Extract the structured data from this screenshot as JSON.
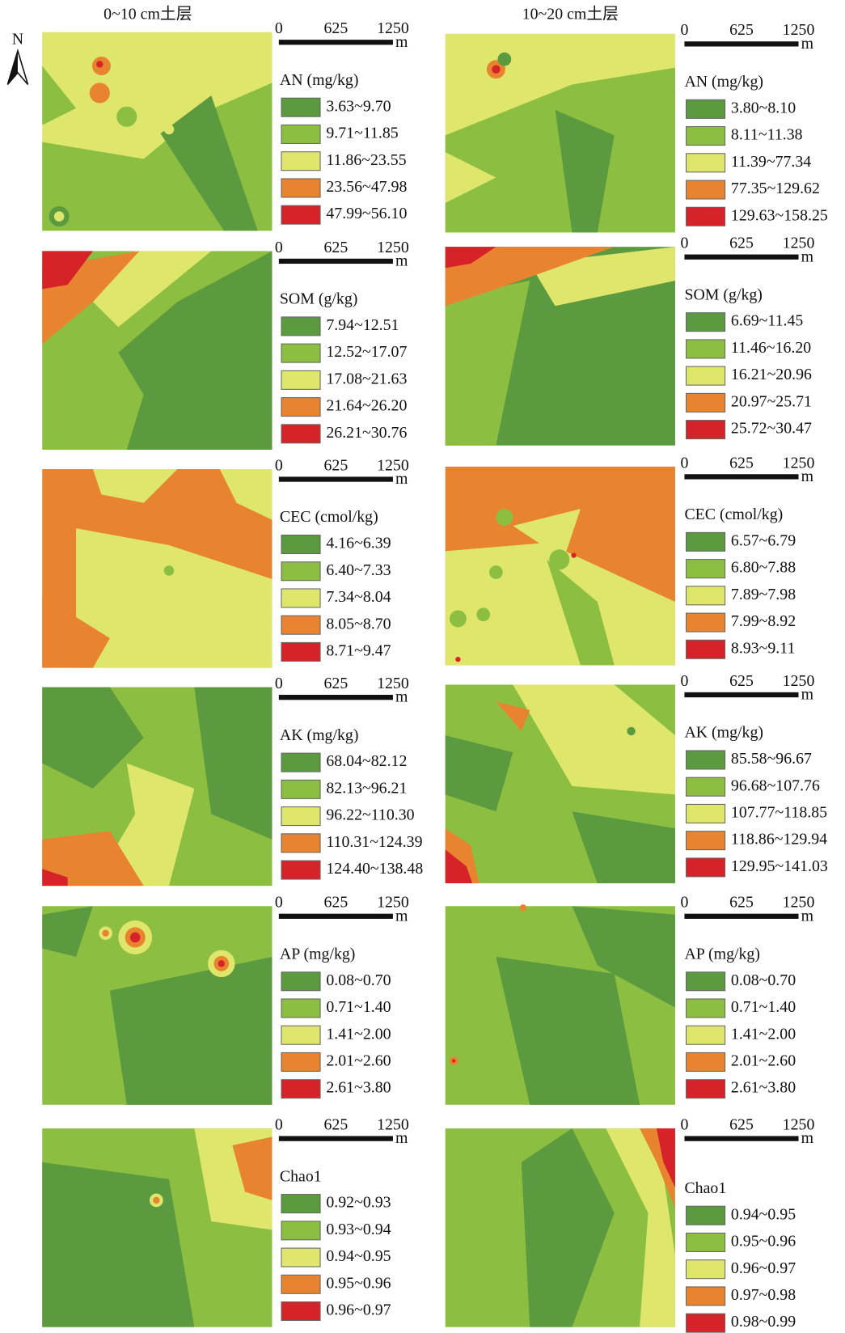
{
  "north": "N",
  "legend_colors": [
    "#5b9a3f",
    "#8cbf41",
    "#dfe66c",
    "#e8832f",
    "#d62229"
  ],
  "columns": [
    {
      "title": "0~10 cm土层",
      "panels": [
        {
          "scale_labels": [
            "0",
            "625",
            "1250"
          ],
          "unit": "m",
          "legend": {
            "title": "AN (mg/kg)",
            "items": [
              "3.63~9.70",
              "9.71~11.85",
              "11.86~23.55",
              "23.56~47.98",
              "47.99~56.10"
            ]
          }
        },
        {
          "scale_labels": [
            "0",
            "625",
            "1250"
          ],
          "unit": "m",
          "legend": {
            "title": "SOM (g/kg)",
            "items": [
              "7.94~12.51",
              "12.52~17.07",
              "17.08~21.63",
              "21.64~26.20",
              "26.21~30.76"
            ]
          }
        },
        {
          "scale_labels": [
            "0",
            "625",
            "1250"
          ],
          "unit": "m",
          "legend": {
            "title": "CEC (cmol/kg)",
            "items": [
              "4.16~6.39",
              "6.40~7.33",
              "7.34~8.04",
              "8.05~8.70",
              "8.71~9.47"
            ]
          }
        },
        {
          "scale_labels": [
            "0",
            "625",
            "1250"
          ],
          "unit": "m",
          "legend": {
            "title": "AK (mg/kg)",
            "items": [
              "68.04~82.12",
              "82.13~96.21",
              "96.22~110.30",
              "110.31~124.39",
              "124.40~138.48"
            ]
          }
        },
        {
          "scale_labels": [
            "0",
            "625",
            "1250"
          ],
          "unit": "m",
          "legend": {
            "title": "AP (mg/kg)",
            "items": [
              "0.08~0.70",
              "0.71~1.40",
              "1.41~2.00",
              "2.01~2.60",
              "2.61~3.80"
            ]
          }
        },
        {
          "scale_labels": [
            "0",
            "625",
            "1250"
          ],
          "unit": "m",
          "legend": {
            "title": "Chao1",
            "items": [
              "0.92~0.93",
              "0.93~0.94",
              "0.94~0.95",
              "0.95~0.96",
              "0.96~0.97"
            ]
          }
        }
      ]
    },
    {
      "title": "10~20 cm土层",
      "panels": [
        {
          "scale_labels": [
            "0",
            "625",
            "1250"
          ],
          "unit": "m",
          "legend": {
            "title": "AN (mg/kg)",
            "items": [
              "3.80~8.10",
              "8.11~11.38",
              "11.39~77.34",
              "77.35~129.62",
              "129.63~158.25"
            ]
          }
        },
        {
          "scale_labels": [
            "0",
            "625",
            "1250"
          ],
          "unit": "m",
          "legend": {
            "title": "SOM (g/kg)",
            "items": [
              "6.69~11.45",
              "11.46~16.20",
              "16.21~20.96",
              "20.97~25.71",
              "25.72~30.47"
            ]
          }
        },
        {
          "scale_labels": [
            "0",
            "625",
            "1250"
          ],
          "unit": "m",
          "legend": {
            "title": "CEC (cmol/kg)",
            "items": [
              "6.57~6.79",
              "6.80~7.88",
              "7.89~7.98",
              "7.99~8.92",
              "8.93~9.11"
            ]
          }
        },
        {
          "scale_labels": [
            "0",
            "625",
            "1250"
          ],
          "unit": "m",
          "legend": {
            "title": "AK (mg/kg)",
            "items": [
              "85.58~96.67",
              "96.68~107.76",
              "107.77~118.85",
              "118.86~129.94",
              "129.95~141.03"
            ]
          }
        },
        {
          "scale_labels": [
            "0",
            "625",
            "1250"
          ],
          "unit": "m",
          "legend": {
            "title": "AP (mg/kg)",
            "items": [
              "0.08~0.70",
              "0.71~1.40",
              "1.41~2.00",
              "2.01~2.60",
              "2.61~3.80"
            ]
          }
        },
        {
          "scale_labels": [
            "0",
            "625",
            "1250"
          ],
          "unit": "m",
          "legend": {
            "title": "Chao1",
            "items": [
              "0.94~0.95",
              "0.95~0.96",
              "0.96~0.97",
              "0.97~0.98",
              "0.98~0.99"
            ]
          }
        }
      ]
    }
  ]
}
